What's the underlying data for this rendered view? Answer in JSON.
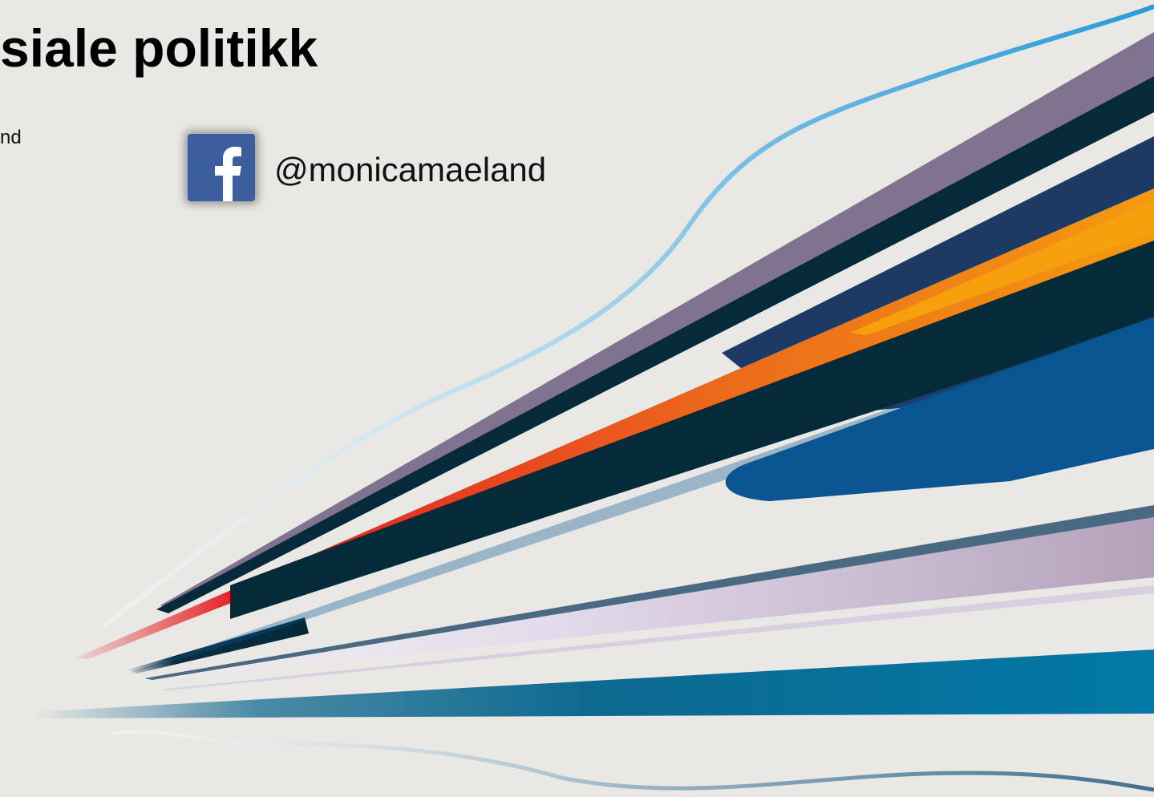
{
  "slide": {
    "title": "siale politikk",
    "subtitle": "nd",
    "facebook_handle": "@monicamaeland"
  }
}
